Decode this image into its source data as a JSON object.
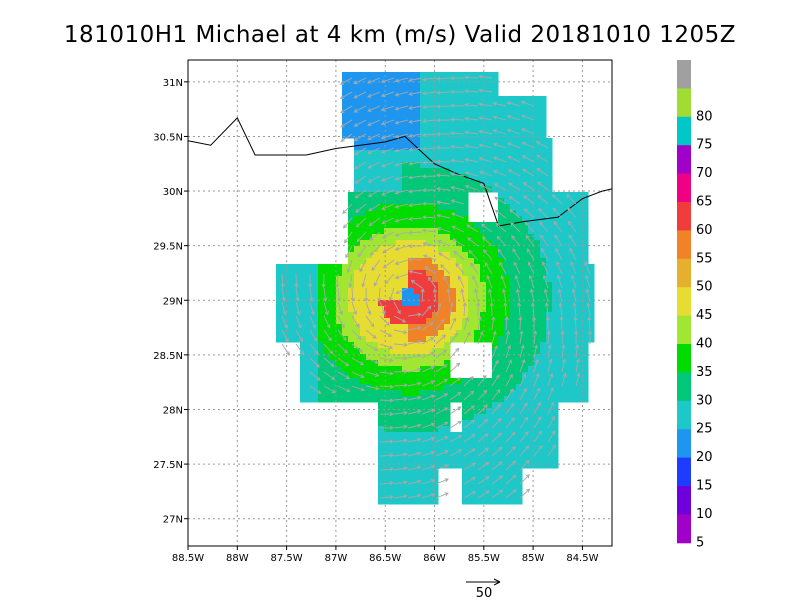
{
  "title": "181010H1 Michael at 4 km (m/s) Valid 20181010 1205Z",
  "map": {
    "lon_min": -88.5,
    "lon_max": -84.2,
    "lat_min": 26.75,
    "lat_max": 31.2,
    "lon_ticks": [
      {
        "value": -88.5,
        "label": "88.5W"
      },
      {
        "value": -88.0,
        "label": "88W"
      },
      {
        "value": -87.5,
        "label": "87.5W"
      },
      {
        "value": -87.0,
        "label": "87W"
      },
      {
        "value": -86.5,
        "label": "86.5W"
      },
      {
        "value": -86.0,
        "label": "86W"
      },
      {
        "value": -85.5,
        "label": "85.5W"
      },
      {
        "value": -85.0,
        "label": "85W"
      },
      {
        "value": -84.5,
        "label": "84.5W"
      }
    ],
    "lat_ticks": [
      {
        "value": 31.0,
        "label": "31N"
      },
      {
        "value": 30.5,
        "label": "30.5N"
      },
      {
        "value": 30.0,
        "label": "30N"
      },
      {
        "value": 29.5,
        "label": "29.5N"
      },
      {
        "value": 29.0,
        "label": "29N"
      },
      {
        "value": 28.5,
        "label": "28.5N"
      },
      {
        "value": 28.0,
        "label": "28N"
      },
      {
        "value": 27.5,
        "label": "27.5N"
      },
      {
        "value": 27.0,
        "label": "27N"
      }
    ],
    "coastline": [
      [
        -88.5,
        30.46
      ],
      [
        -88.27,
        30.42
      ],
      [
        -88.0,
        30.67
      ],
      [
        -87.82,
        30.33
      ],
      [
        -87.3,
        30.33
      ],
      [
        -87.0,
        30.39
      ],
      [
        -86.5,
        30.45
      ],
      [
        -86.3,
        30.5
      ],
      [
        -86.0,
        30.25
      ],
      [
        -85.75,
        30.15
      ],
      [
        -85.5,
        30.07
      ],
      [
        -85.35,
        29.68
      ],
      [
        -85.1,
        29.72
      ],
      [
        -84.75,
        29.76
      ],
      [
        -84.5,
        29.93
      ],
      [
        -84.3,
        30.0
      ],
      [
        -84.2,
        30.02
      ]
    ],
    "storm_center": {
      "lon": -86.25,
      "lat": 29.02
    },
    "wind_field_unit": "m/s"
  },
  "colorbar": {
    "levels": [
      {
        "label": "",
        "color": "#a0a0a0"
      },
      {
        "label": "80",
        "color": "#a0dc32"
      },
      {
        "label": "75",
        "color": "#00c8c8"
      },
      {
        "label": "70",
        "color": "#a000c8"
      },
      {
        "label": "65",
        "color": "#f00082"
      },
      {
        "label": "60",
        "color": "#f03c3c"
      },
      {
        "label": "55",
        "color": "#f08228"
      },
      {
        "label": "50",
        "color": "#e6af2d"
      },
      {
        "label": "45",
        "color": "#e6dc32"
      },
      {
        "label": "40",
        "color": "#a0e632"
      },
      {
        "label": "35",
        "color": "#00dc00"
      },
      {
        "label": "30",
        "color": "#00c878"
      },
      {
        "label": "25",
        "color": "#1ec8c8"
      },
      {
        "label": "20",
        "color": "#1e96f0"
      },
      {
        "label": "15",
        "color": "#1e3cff"
      },
      {
        "label": "10",
        "color": "#6e00dc"
      },
      {
        "label": "5",
        "color": "#a000c8"
      }
    ]
  },
  "reference_vector": {
    "label": "50"
  },
  "colors": {
    "vector": "#a8a8a8",
    "coastline": "#000000"
  }
}
